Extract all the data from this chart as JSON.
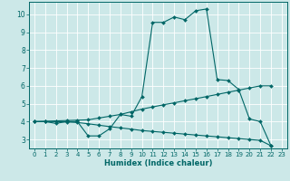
{
  "xlabel": "Humidex (Indice chaleur)",
  "bg_color": "#cce8e8",
  "grid_color": "#ffffff",
  "line_color": "#006666",
  "xlim": [
    -0.5,
    23.5
  ],
  "ylim": [
    2.5,
    10.7
  ],
  "xticks": [
    0,
    1,
    2,
    3,
    4,
    5,
    6,
    7,
    8,
    9,
    10,
    11,
    12,
    13,
    14,
    15,
    16,
    17,
    18,
    19,
    20,
    21,
    22,
    23
  ],
  "yticks": [
    3,
    4,
    5,
    6,
    7,
    8,
    9,
    10
  ],
  "line1_x": [
    0,
    1,
    2,
    3,
    4,
    5,
    6,
    7,
    8,
    9,
    10,
    11,
    12,
    13,
    14,
    15,
    16,
    17,
    18,
    19,
    20,
    21,
    22
  ],
  "line1_y": [
    4.0,
    4.0,
    3.9,
    4.0,
    4.0,
    3.2,
    3.2,
    3.6,
    4.4,
    4.3,
    5.4,
    9.55,
    9.55,
    9.85,
    9.7,
    10.2,
    10.3,
    6.35,
    6.3,
    5.8,
    4.15,
    4.0,
    2.65
  ],
  "line2_x": [
    0,
    1,
    2,
    3,
    4,
    5,
    6,
    7,
    8,
    9,
    10,
    11,
    12,
    13,
    14,
    15,
    16,
    17,
    18,
    19,
    20,
    21,
    22
  ],
  "line2_y": [
    4.0,
    4.02,
    4.04,
    4.06,
    4.08,
    4.1,
    4.2,
    4.3,
    4.4,
    4.55,
    4.7,
    4.82,
    4.94,
    5.05,
    5.17,
    5.28,
    5.4,
    5.52,
    5.64,
    5.76,
    5.88,
    6.0,
    6.0
  ],
  "line3_x": [
    0,
    1,
    2,
    3,
    4,
    5,
    6,
    7,
    8,
    9,
    10,
    11,
    12,
    13,
    14,
    15,
    16,
    17,
    18,
    19,
    20,
    21,
    22
  ],
  "line3_y": [
    4.0,
    4.0,
    4.0,
    3.98,
    3.95,
    3.88,
    3.8,
    3.72,
    3.65,
    3.58,
    3.5,
    3.45,
    3.4,
    3.35,
    3.3,
    3.25,
    3.2,
    3.15,
    3.1,
    3.05,
    3.0,
    2.95,
    2.65
  ],
  "xlabel_fontsize": 6.0,
  "tick_fontsize_x": 5.0,
  "tick_fontsize_y": 5.5,
  "linewidth": 0.8,
  "markersize": 2.0
}
